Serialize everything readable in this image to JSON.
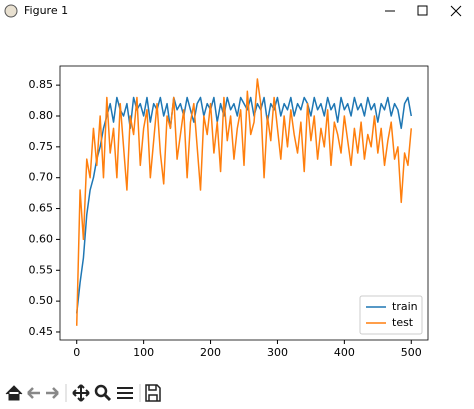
{
  "window": {
    "title": "Figure 1"
  },
  "chart_data": {
    "type": "line",
    "x": [
      0,
      5,
      10,
      15,
      20,
      25,
      30,
      35,
      40,
      45,
      50,
      55,
      60,
      65,
      70,
      75,
      80,
      85,
      90,
      95,
      100,
      105,
      110,
      115,
      120,
      125,
      130,
      135,
      140,
      145,
      150,
      155,
      160,
      165,
      170,
      175,
      180,
      185,
      190,
      195,
      200,
      205,
      210,
      215,
      220,
      225,
      230,
      235,
      240,
      245,
      250,
      255,
      260,
      265,
      270,
      275,
      280,
      285,
      290,
      295,
      300,
      305,
      310,
      315,
      320,
      325,
      330,
      335,
      340,
      345,
      350,
      355,
      360,
      365,
      370,
      375,
      380,
      385,
      390,
      395,
      400,
      405,
      410,
      415,
      420,
      425,
      430,
      435,
      440,
      445,
      450,
      455,
      460,
      465,
      470,
      475,
      480,
      485,
      490,
      495,
      500
    ],
    "series": [
      {
        "name": "train",
        "color": "#1f77b4",
        "values": [
          0.48,
          0.53,
          0.57,
          0.64,
          0.68,
          0.7,
          0.73,
          0.75,
          0.78,
          0.8,
          0.82,
          0.79,
          0.83,
          0.81,
          0.8,
          0.82,
          0.78,
          0.83,
          0.81,
          0.82,
          0.8,
          0.83,
          0.79,
          0.82,
          0.81,
          0.83,
          0.8,
          0.82,
          0.78,
          0.83,
          0.81,
          0.82,
          0.8,
          0.83,
          0.81,
          0.79,
          0.82,
          0.83,
          0.8,
          0.82,
          0.81,
          0.83,
          0.79,
          0.82,
          0.8,
          0.83,
          0.81,
          0.82,
          0.8,
          0.83,
          0.82,
          0.81,
          0.83,
          0.8,
          0.82,
          0.81,
          0.83,
          0.79,
          0.82,
          0.81,
          0.83,
          0.8,
          0.82,
          0.81,
          0.83,
          0.8,
          0.82,
          0.81,
          0.83,
          0.82,
          0.8,
          0.83,
          0.81,
          0.82,
          0.8,
          0.83,
          0.81,
          0.82,
          0.79,
          0.83,
          0.81,
          0.82,
          0.8,
          0.83,
          0.81,
          0.82,
          0.8,
          0.83,
          0.81,
          0.82,
          0.79,
          0.82,
          0.81,
          0.83,
          0.8,
          0.82,
          0.81,
          0.78,
          0.82,
          0.83,
          0.8
        ]
      },
      {
        "name": "test",
        "color": "#ff7f0e",
        "values": [
          0.46,
          0.68,
          0.6,
          0.73,
          0.7,
          0.78,
          0.72,
          0.8,
          0.7,
          0.83,
          0.74,
          0.78,
          0.7,
          0.82,
          0.75,
          0.68,
          0.8,
          0.77,
          0.83,
          0.72,
          0.78,
          0.81,
          0.7,
          0.76,
          0.82,
          0.74,
          0.69,
          0.8,
          0.78,
          0.83,
          0.73,
          0.77,
          0.81,
          0.7,
          0.79,
          0.82,
          0.75,
          0.68,
          0.8,
          0.77,
          0.82,
          0.74,
          0.79,
          0.71,
          0.83,
          0.76,
          0.8,
          0.73,
          0.78,
          0.81,
          0.72,
          0.84,
          0.77,
          0.79,
          0.86,
          0.82,
          0.7,
          0.8,
          0.76,
          0.83,
          0.78,
          0.73,
          0.8,
          0.75,
          0.81,
          0.77,
          0.74,
          0.79,
          0.71,
          0.82,
          0.76,
          0.8,
          0.73,
          0.78,
          0.75,
          0.81,
          0.72,
          0.79,
          0.77,
          0.74,
          0.8,
          0.76,
          0.72,
          0.78,
          0.74,
          0.79,
          0.73,
          0.77,
          0.75,
          0.8,
          0.74,
          0.78,
          0.72,
          0.76,
          0.79,
          0.73,
          0.75,
          0.66,
          0.74,
          0.72,
          0.78
        ]
      }
    ],
    "xlim": [
      -25,
      525
    ],
    "xticks": [
      0,
      100,
      200,
      300,
      400,
      500
    ],
    "ylim": [
      0.437,
      0.881
    ],
    "yticks": [
      0.45,
      {
        "value": 0.5,
        "label": "0.50"
      },
      0.55,
      {
        "value": 0.6,
        "label": "0.60"
      },
      0.65,
      {
        "value": 0.7,
        "label": "0.70"
      },
      0.75,
      {
        "value": 0.8,
        "label": "0.80"
      },
      0.85
    ],
    "legend": "lower right"
  }
}
